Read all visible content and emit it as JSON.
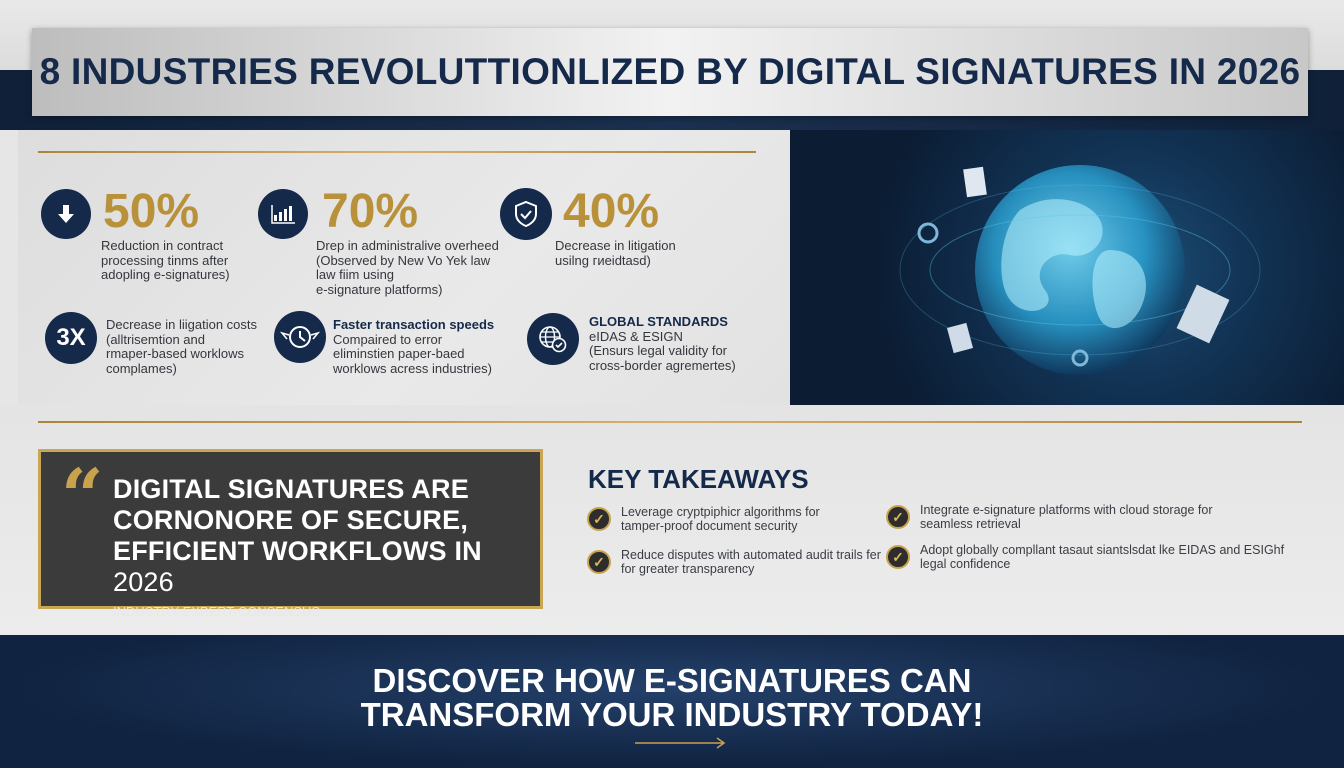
{
  "title": "8 INDUSTRIES REVOLUTTIONLIZED BY DIGITAL SIGNATURES IN 2026",
  "stats": [
    {
      "icon": "arrow-down-icon",
      "value": "50%",
      "lines": [
        "Reduction in contract",
        "processing tinms after",
        "adopling e-signatures)"
      ]
    },
    {
      "icon": "bar-chart-icon",
      "value": "70%",
      "lines": [
        "Drep in administralive overheed",
        "(Observed by New Vo Yek law",
        "law fiim using",
        "e-signature platforms)"
      ]
    },
    {
      "icon": "shield-check-icon",
      "value": "40%",
      "lines": [
        "Decrease in litigation",
        "usilng гиeidtasd)"
      ]
    }
  ],
  "facts": [
    {
      "icon": "3x-badge",
      "badge": "3X",
      "heading": "",
      "lines": [
        "Decrease in liigation costs",
        "(alltrisemtion and",
        "rmaper-based worklows",
        "complames)"
      ]
    },
    {
      "icon": "winged-clock-icon",
      "heading": "Faster transaction speeds",
      "lines": [
        "Compaired to error",
        "eliminstien paper-baed",
        "worklows acress industries)"
      ]
    },
    {
      "icon": "globe-check-icon",
      "heading": "GLOBAL STANDARDS",
      "lines": [
        "eIDAS & ESIGN",
        "(Ensurs legal validity for",
        "cross-border agremertes)"
      ]
    }
  ],
  "quote": {
    "line1": "DIGITAL SIGNATURES ARE",
    "line2": "CORNONORE OF SECURE,",
    "line3": "EFFICIENT WORKFLOWS IN",
    "year": "2026",
    "source": "INDUSTRY EXPERT CONSENSUS"
  },
  "takeaways": {
    "heading": "KEY TAKEAWAYS",
    "items": [
      {
        "lines": [
          "Leverage cryptpiphicr algorithms for",
          "tamper-proof document security"
        ]
      },
      {
        "lines": [
          "Reduce disputes with automated audit trails fer",
          "for greater transparency"
        ]
      },
      {
        "lines": [
          "Integrate e-signature platforms with cloud storage for",
          "seamless retrieval"
        ]
      },
      {
        "lines": [
          "Adopt globally compllant tasaut siantslsdat lke EIDAS and ESIGhf",
          "legal confidence"
        ]
      }
    ]
  },
  "cta": {
    "line1": "DISCOVER HOW E-SIGNATURES CAN",
    "line2": "TRANSFORM YOUR INDUSTRY TODAY!"
  },
  "colors": {
    "navy": "#15294a",
    "gold": "#b8913a",
    "quote_bg": "#3b3b3b"
  }
}
